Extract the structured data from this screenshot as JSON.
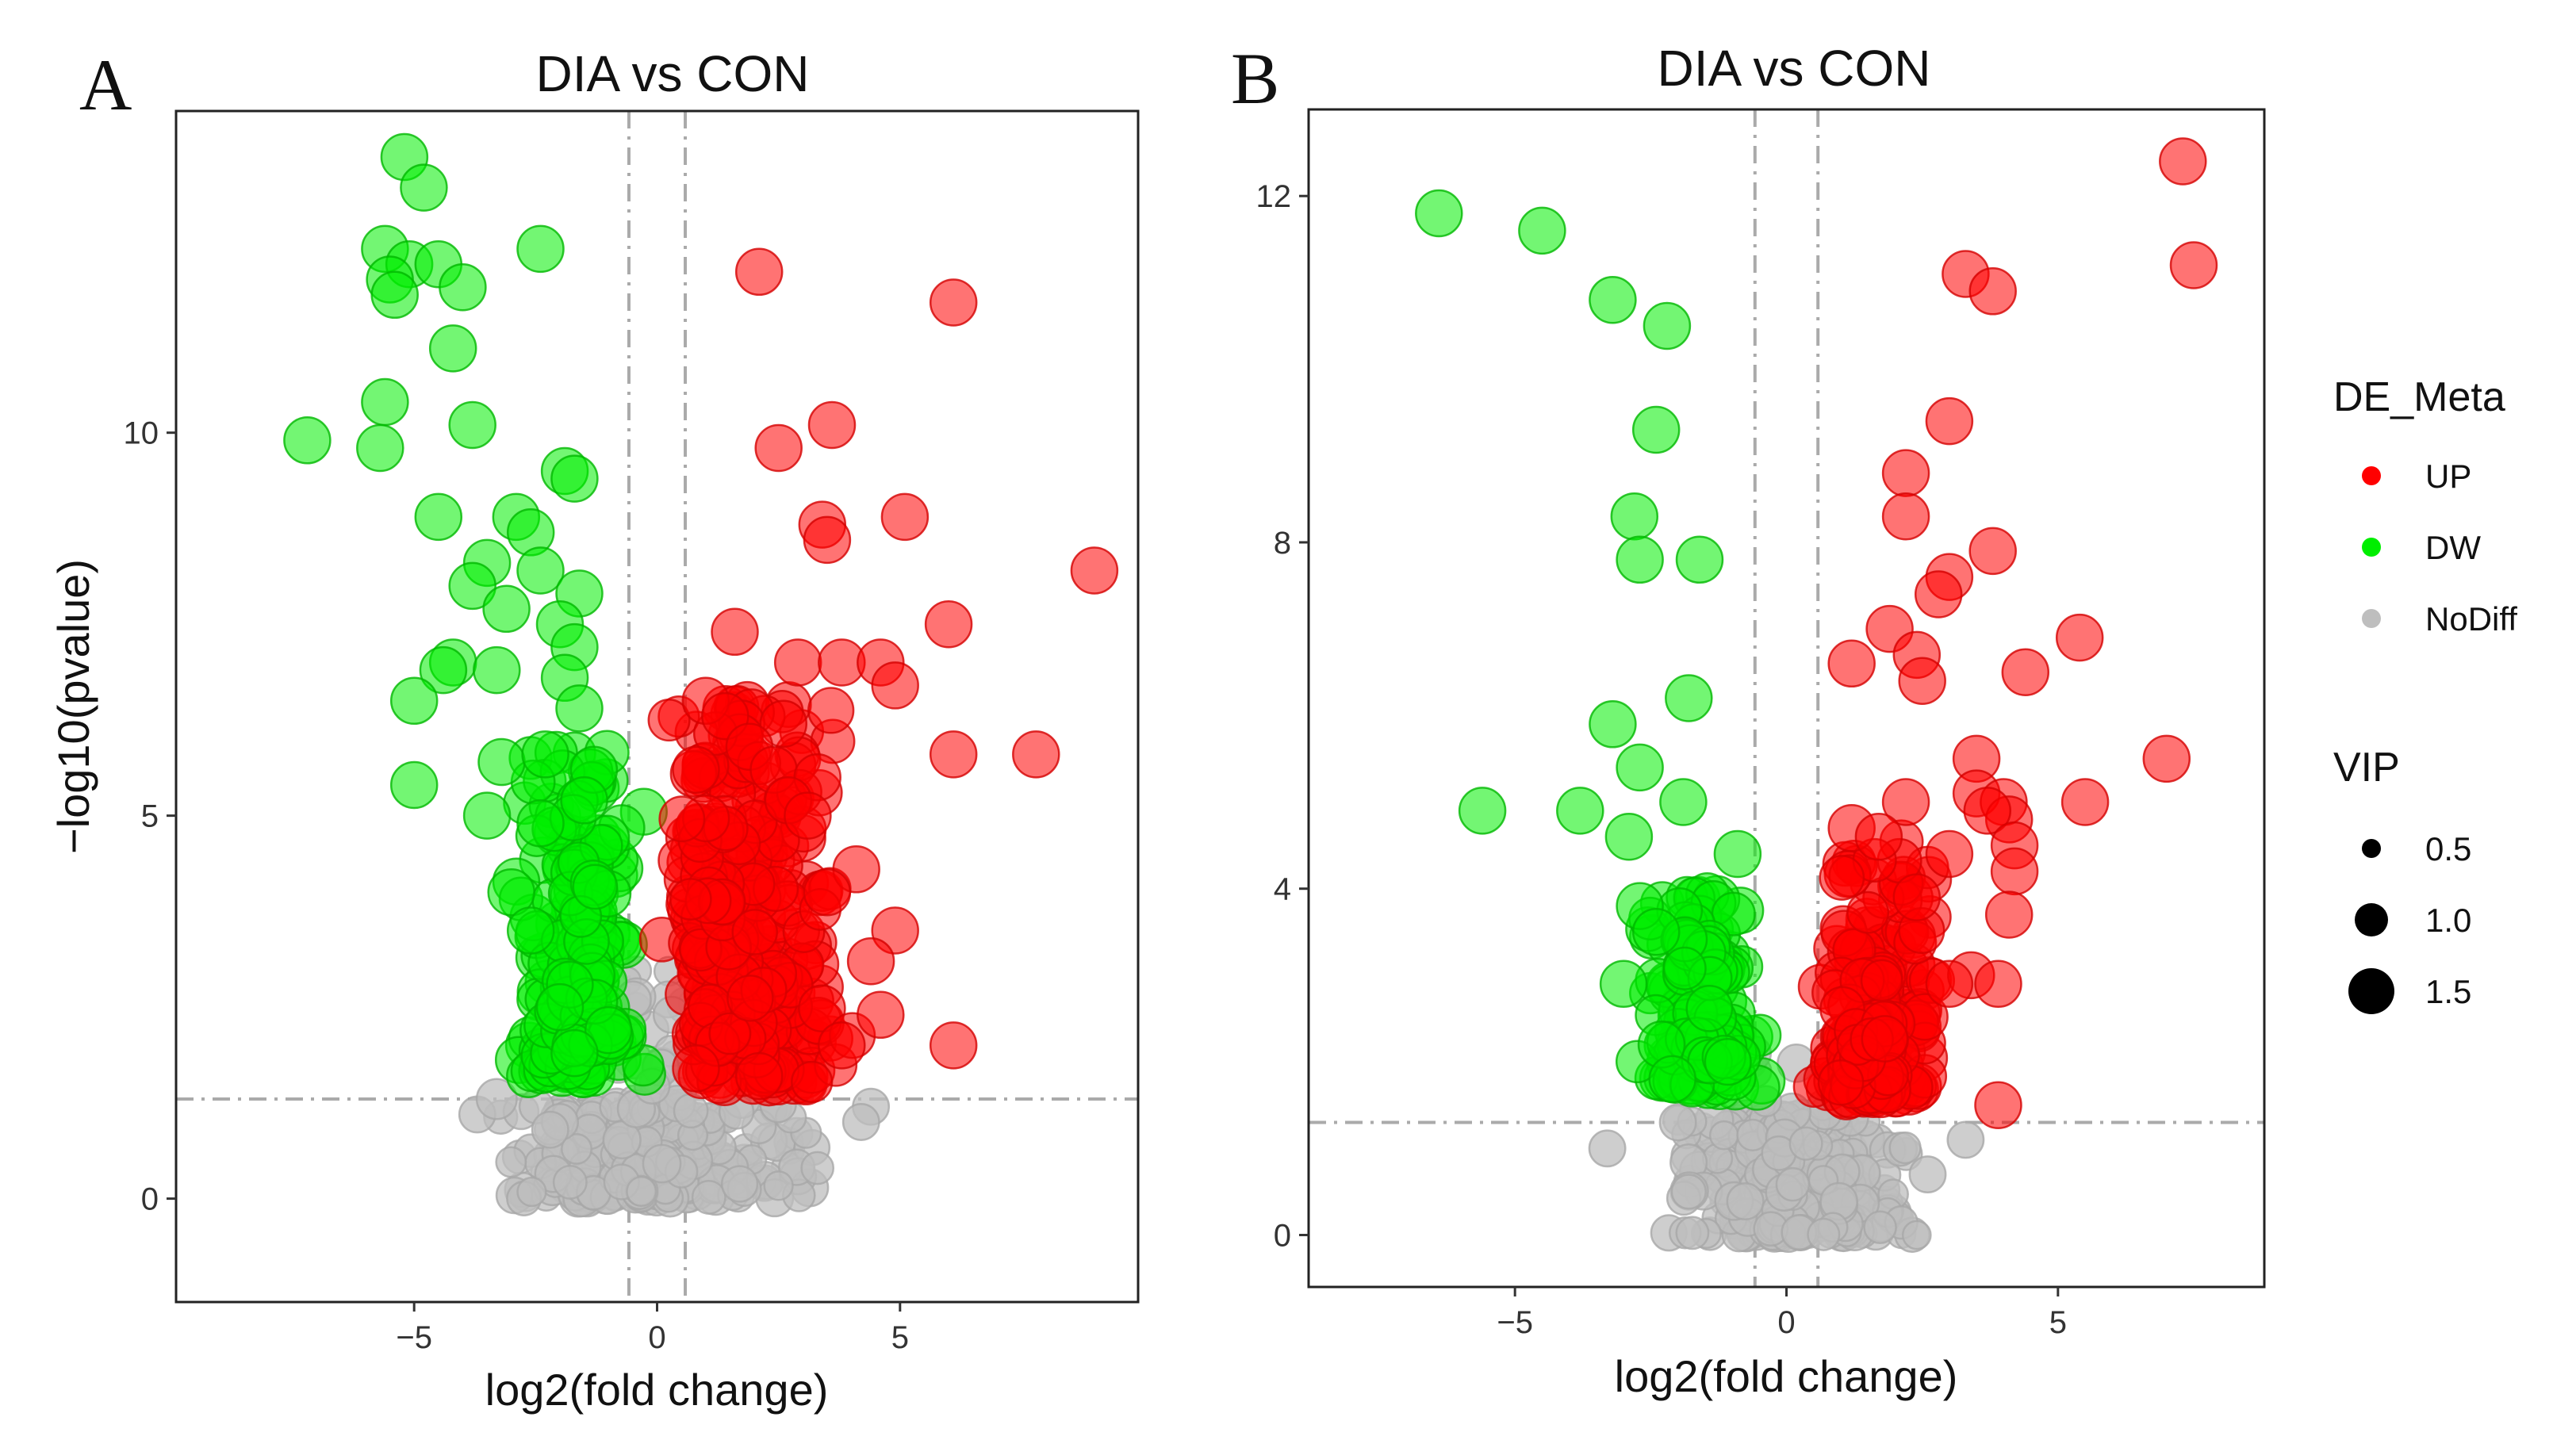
{
  "chart_data": [
    {
      "type": "scatter",
      "panel": "A",
      "title": "DIA vs CON",
      "xlabel": "log2(fold change)",
      "ylabel": "−log10(pvalue)",
      "xlim": [
        -9.9,
        9.9
      ],
      "ylim": [
        -1.35,
        14.2
      ],
      "xticks": [
        -5,
        0,
        5
      ],
      "xtick_labels": [
        "−5",
        "0",
        "5"
      ],
      "yticks": [
        0,
        5,
        10
      ],
      "ytick_labels": [
        "0",
        "5",
        "10"
      ],
      "thresholds": {
        "x": [
          -0.58,
          0.58
        ],
        "y": 1.3
      },
      "seed": 12345,
      "points": {
        "UP": [
          [
            2.1,
            12.1,
            1.5
          ],
          [
            6.1,
            11.7,
            1.5
          ],
          [
            3.6,
            10.1,
            1.5
          ],
          [
            2.5,
            9.8,
            1.5
          ],
          [
            3.4,
            8.8,
            1.5
          ],
          [
            3.5,
            8.6,
            1.5
          ],
          [
            5.1,
            8.9,
            1.5
          ],
          [
            9.0,
            8.2,
            1.5
          ],
          [
            1.6,
            7.4,
            1.5
          ],
          [
            6.0,
            7.5,
            1.5
          ],
          [
            2.9,
            7.0,
            1.5
          ],
          [
            3.8,
            7.0,
            1.5
          ],
          [
            4.6,
            7.0,
            1.5
          ],
          [
            4.9,
            6.7,
            1.5
          ],
          [
            1.0,
            6.5,
            1.5
          ],
          [
            1.4,
            6.3,
            1.5
          ],
          [
            2.6,
            6.2,
            1.5
          ],
          [
            6.1,
            5.8,
            1.5
          ],
          [
            7.8,
            5.8,
            1.5
          ],
          [
            1.9,
            5.9,
            1.5
          ],
          [
            2.4,
            5.6,
            1.5
          ],
          [
            3.3,
            5.5,
            1.5
          ],
          [
            0.8,
            5.6,
            1.5
          ],
          [
            2.7,
            5.2,
            1.5
          ],
          [
            3.1,
            5.0,
            1.5
          ],
          [
            4.1,
            4.3,
            1.5
          ],
          [
            3.5,
            4.0,
            1.5
          ],
          [
            4.9,
            3.5,
            1.5
          ],
          [
            4.4,
            3.1,
            1.5
          ],
          [
            4.6,
            2.4,
            1.5
          ],
          [
            3.8,
            2.0,
            1.5
          ],
          [
            6.1,
            2.0,
            1.5
          ],
          [
            0.8,
            1.7,
            1.5
          ],
          [
            2.1,
            1.6,
            1.5
          ]
        ],
        "DW": [
          [
            -5.2,
            13.6,
            1.5
          ],
          [
            -4.8,
            13.2,
            1.5
          ],
          [
            -5.6,
            12.4,
            1.5
          ],
          [
            -5.1,
            12.2,
            1.5
          ],
          [
            -4.5,
            12.2,
            1.5
          ],
          [
            -5.5,
            12.0,
            1.5
          ],
          [
            -4.0,
            11.9,
            1.5
          ],
          [
            -2.4,
            12.4,
            1.5
          ],
          [
            -5.4,
            11.8,
            1.5
          ],
          [
            -4.2,
            11.1,
            1.5
          ],
          [
            -5.6,
            10.4,
            1.5
          ],
          [
            -7.2,
            9.9,
            1.5
          ],
          [
            -5.7,
            9.8,
            1.5
          ],
          [
            -3.8,
            10.1,
            1.5
          ],
          [
            -1.9,
            9.5,
            1.5
          ],
          [
            -1.7,
            9.4,
            1.5
          ],
          [
            -4.5,
            8.9,
            1.5
          ],
          [
            -2.9,
            8.9,
            1.5
          ],
          [
            -2.6,
            8.7,
            1.5
          ],
          [
            -3.5,
            8.3,
            1.5
          ],
          [
            -2.4,
            8.2,
            1.5
          ],
          [
            -3.8,
            8.0,
            1.5
          ],
          [
            -1.6,
            7.9,
            1.5
          ],
          [
            -3.1,
            7.7,
            1.5
          ],
          [
            -2.0,
            7.5,
            1.5
          ],
          [
            -1.7,
            7.2,
            1.5
          ],
          [
            -4.2,
            7.0,
            1.5
          ],
          [
            -4.4,
            6.9,
            1.5
          ],
          [
            -3.3,
            6.9,
            1.5
          ],
          [
            -1.9,
            6.8,
            1.5
          ],
          [
            -1.6,
            6.4,
            1.5
          ],
          [
            -5.0,
            6.5,
            1.5
          ],
          [
            -3.2,
            5.7,
            1.5
          ],
          [
            -2.3,
            5.8,
            1.5
          ],
          [
            -5.0,
            5.4,
            1.5
          ],
          [
            -3.5,
            5.0,
            1.5
          ],
          [
            -1.3,
            5.6,
            1.5
          ],
          [
            -1.5,
            5.2,
            1.5
          ],
          [
            -2.4,
            4.9,
            1.5
          ],
          [
            -3.0,
            4.0,
            1.5
          ],
          [
            -2.6,
            3.5,
            1.5
          ],
          [
            -2.0,
            2.5,
            1.5
          ],
          [
            -1.0,
            2.2,
            1.5
          ],
          [
            -1.7,
            1.9,
            1.5
          ]
        ],
        "NoDiff": [
          [
            -3.7,
            1.1,
            1.0
          ],
          [
            -3.3,
            1.3,
            1.2
          ],
          [
            -2.0,
            1.0,
            1.0
          ],
          [
            4.4,
            1.2,
            1.0
          ],
          [
            4.2,
            1.0,
            1.0
          ],
          [
            3.3,
            0.4,
            0.8
          ],
          [
            -2.2,
            0.9,
            1.0
          ],
          [
            -0.5,
            2.6,
            1.0
          ],
          [
            0.3,
            2.4,
            1.0
          ]
        ]
      },
      "clusters": [
        {
          "group": "UP",
          "x": [
            0.7,
            3.4
          ],
          "y": [
            1.5,
            6.5
          ],
          "n": 230
        },
        {
          "group": "UP",
          "x": [
            0.7,
            2.0
          ],
          "y": [
            2.0,
            5.0
          ],
          "n": 80
        },
        {
          "group": "DW",
          "x": [
            -2.6,
            -0.7
          ],
          "y": [
            1.6,
            6.0
          ],
          "n": 150
        },
        {
          "group": "DW",
          "x": [
            -2.0,
            -0.8
          ],
          "y": [
            2.0,
            5.0
          ],
          "n": 60
        },
        {
          "group": "NoDiff",
          "x": [
            -2.4,
            2.4
          ],
          "y": [
            0.0,
            1.3
          ],
          "n": 260
        },
        {
          "group": "NoDiff",
          "x": [
            -0.7,
            0.7
          ],
          "y": [
            0.0,
            3.0
          ],
          "n": 50
        }
      ]
    },
    {
      "type": "scatter",
      "panel": "B",
      "title": "DIA vs CON",
      "xlabel": "log2(fold change)",
      "ylabel": "",
      "xlim": [
        -8.8,
        8.8
      ],
      "ylim": [
        -0.6,
        13.0
      ],
      "xticks": [
        -5,
        0,
        5
      ],
      "xtick_labels": [
        "−5",
        "0",
        "5"
      ],
      "yticks": [
        0,
        4,
        8,
        12
      ],
      "ytick_labels": [
        "0",
        "4",
        "8",
        "12"
      ],
      "thresholds": {
        "x": [
          -0.58,
          0.58
        ],
        "y": 1.3
      },
      "seed": 67890,
      "points": {
        "UP": [
          [
            7.3,
            12.4,
            1.5
          ],
          [
            7.5,
            11.2,
            1.5
          ],
          [
            3.3,
            11.1,
            1.5
          ],
          [
            3.8,
            10.9,
            1.5
          ],
          [
            3.0,
            9.4,
            1.5
          ],
          [
            2.2,
            8.8,
            1.5
          ],
          [
            2.2,
            8.3,
            1.5
          ],
          [
            3.8,
            7.9,
            1.5
          ],
          [
            3.0,
            7.6,
            1.5
          ],
          [
            2.8,
            7.4,
            1.5
          ],
          [
            5.4,
            6.9,
            1.5
          ],
          [
            1.9,
            7.0,
            1.5
          ],
          [
            2.4,
            6.7,
            1.5
          ],
          [
            1.2,
            6.6,
            1.5
          ],
          [
            4.4,
            6.5,
            1.5
          ],
          [
            2.5,
            6.4,
            1.5
          ],
          [
            7.0,
            5.5,
            1.5
          ],
          [
            3.5,
            5.5,
            1.5
          ],
          [
            5.5,
            5.0,
            1.5
          ],
          [
            3.5,
            5.1,
            1.5
          ],
          [
            4.0,
            5.0,
            1.5
          ],
          [
            2.2,
            5.0,
            1.5
          ],
          [
            4.1,
            4.8,
            1.5
          ],
          [
            3.7,
            4.9,
            1.5
          ],
          [
            4.2,
            4.5,
            1.5
          ],
          [
            1.2,
            4.7,
            1.5
          ],
          [
            1.7,
            4.6,
            1.5
          ],
          [
            3.0,
            4.4,
            1.5
          ],
          [
            4.2,
            4.2,
            1.5
          ],
          [
            2.4,
            3.9,
            1.5
          ],
          [
            4.1,
            3.7,
            1.5
          ],
          [
            3.4,
            3.0,
            1.5
          ],
          [
            3.9,
            2.9,
            1.5
          ],
          [
            3.0,
            2.9,
            1.5
          ],
          [
            3.9,
            1.5,
            1.5
          ]
        ],
        "DW": [
          [
            -6.4,
            11.8,
            1.5
          ],
          [
            -4.5,
            11.6,
            1.5
          ],
          [
            -3.2,
            10.8,
            1.5
          ],
          [
            -2.2,
            10.5,
            1.5
          ],
          [
            -2.4,
            9.3,
            1.5
          ],
          [
            -2.8,
            8.3,
            1.5
          ],
          [
            -2.7,
            7.8,
            1.5
          ],
          [
            -1.6,
            7.8,
            1.5
          ],
          [
            -1.8,
            6.2,
            1.5
          ],
          [
            -3.2,
            5.9,
            1.5
          ],
          [
            -2.7,
            5.4,
            1.5
          ],
          [
            -5.6,
            4.9,
            1.5
          ],
          [
            -3.8,
            4.9,
            1.5
          ],
          [
            -2.9,
            4.6,
            1.5
          ],
          [
            -1.9,
            5.0,
            1.5
          ],
          [
            -0.9,
            4.4,
            1.5
          ],
          [
            -2.7,
            3.8,
            1.5
          ],
          [
            -2.4,
            3.5,
            1.5
          ],
          [
            -3.0,
            2.9,
            1.5
          ],
          [
            -2.3,
            2.2,
            1.5
          ],
          [
            -2.1,
            1.8,
            1.5
          ]
        ],
        "NoDiff": [
          [
            -3.3,
            1.0,
            1.0
          ],
          [
            -1.8,
            0.5,
            0.9
          ],
          [
            -2.0,
            1.3,
            1.0
          ],
          [
            3.3,
            1.1,
            1.0
          ],
          [
            2.6,
            0.7,
            1.0
          ],
          [
            2.4,
            0.0,
            0.6
          ],
          [
            -0.6,
            2.1,
            0.9
          ]
        ]
      },
      "clusters": [
        {
          "group": "UP",
          "x": [
            0.8,
            2.6
          ],
          "y": [
            1.6,
            4.6
          ],
          "n": 130
        },
        {
          "group": "UP",
          "x": [
            0.9,
            1.9
          ],
          "y": [
            1.6,
            3.0
          ],
          "n": 60
        },
        {
          "group": "DW",
          "x": [
            -2.4,
            -0.8
          ],
          "y": [
            1.7,
            4.0
          ],
          "n": 110
        },
        {
          "group": "DW",
          "x": [
            -1.9,
            -1.0
          ],
          "y": [
            2.0,
            3.5
          ],
          "n": 40
        },
        {
          "group": "NoDiff",
          "x": [
            -1.6,
            1.8
          ],
          "y": [
            0.0,
            1.4
          ],
          "n": 240
        },
        {
          "group": "NoDiff",
          "x": [
            -0.6,
            0.8
          ],
          "y": [
            0.0,
            2.0
          ],
          "n": 40
        }
      ]
    }
  ],
  "legend": {
    "color_title": "DE_Meta",
    "color_items": [
      {
        "label": "UP",
        "color": "#ff0000"
      },
      {
        "label": "DW",
        "color": "#00ee00"
      },
      {
        "label": "NoDiff",
        "color": "#bebebe"
      }
    ],
    "size_title": "VIP",
    "size_items": [
      {
        "label": "0.5",
        "value": 0.5
      },
      {
        "label": "1.0",
        "value": 1.0
      },
      {
        "label": "1.5",
        "value": 1.5
      }
    ]
  },
  "colors": {
    "UP": "#ff0000",
    "DW": "#00ee00",
    "NoDiff": "#bebebe",
    "UP_edge": "#d40000",
    "DW_edge": "#00b800",
    "NoDiff_edge": "#a8a8a8"
  }
}
